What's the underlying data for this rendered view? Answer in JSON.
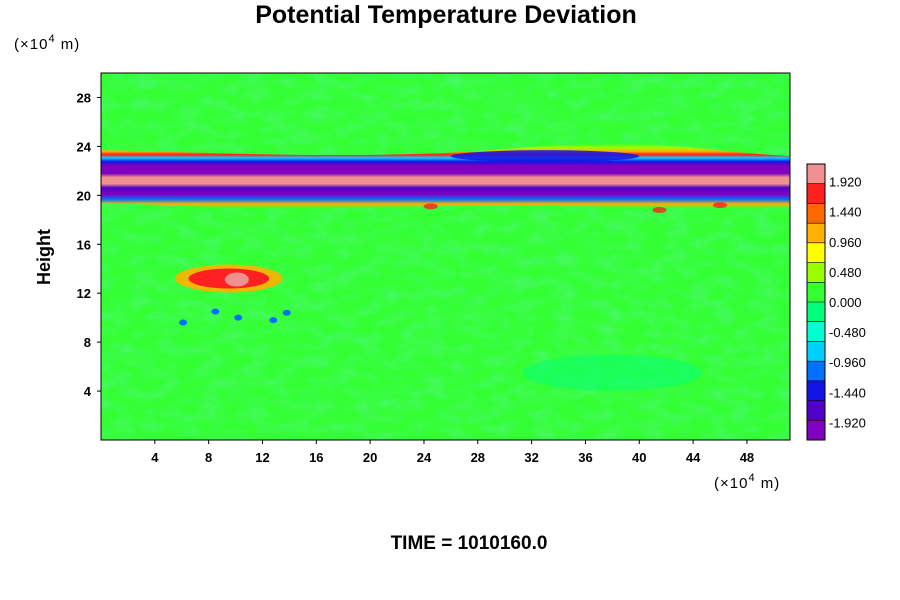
{
  "chart_data": {
    "type": "heatmap",
    "title": "Potential Temperature Deviation",
    "ylabel": "Height",
    "x_unit_prefix": "(×10",
    "x_unit_exp": "4",
    "x_unit_suffix": " m)",
    "y_unit_prefix": "(×10",
    "y_unit_exp": "4",
    "y_unit_suffix": " m)",
    "xlim": [
      0,
      51.2
    ],
    "ylim": [
      0,
      30
    ],
    "x_ticks": [
      "4",
      "8",
      "12",
      "16",
      "20",
      "24",
      "28",
      "32",
      "36",
      "40",
      "44",
      "48"
    ],
    "y_ticks": [
      "4",
      "8",
      "12",
      "16",
      "20",
      "24",
      "28"
    ],
    "colorbar": {
      "range": [
        -2.2,
        2.2
      ],
      "labels": [
        "1.920",
        "1.440",
        "0.960",
        "0.480",
        "0.000",
        "-0.480",
        "-0.960",
        "-1.440",
        "-1.920"
      ],
      "colors": [
        "#f09090",
        "#ff2020",
        "#ff6a00",
        "#ffb000",
        "#ffff00",
        "#9aff00",
        "#33ff33",
        "#00ff7a",
        "#00ffd2",
        "#00d2ff",
        "#0070ff",
        "#1414e6",
        "#5000c8",
        "#8000c0"
      ]
    },
    "features": [
      {
        "desc": "warm band upper",
        "x": [
          0,
          51.2
        ],
        "y": 20.8,
        "value": 1.9
      },
      {
        "desc": "cold band",
        "x": [
          0,
          51.2
        ],
        "y": 20.2,
        "value": -1.9
      },
      {
        "desc": "cold band",
        "x": [
          0,
          51.2
        ],
        "y": 21.2,
        "value": -1.6
      },
      {
        "desc": "cold patch",
        "x": [
          26,
          40
        ],
        "y": 23.2,
        "value": -1.5
      },
      {
        "desc": "warm patch",
        "x": [
          5.5,
          13.5
        ],
        "y": 13.2,
        "value": 1.8
      }
    ],
    "time_label": "TIME = 1010160.0"
  }
}
